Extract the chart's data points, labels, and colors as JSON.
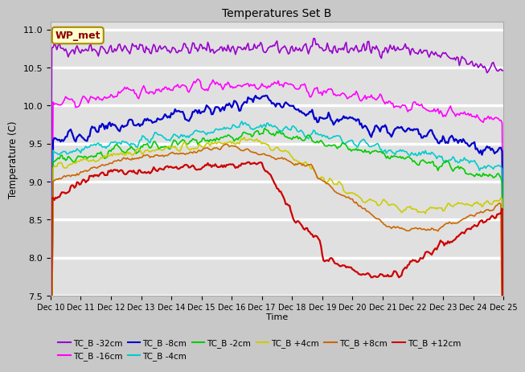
{
  "title": "Temperatures Set B",
  "xlabel": "Time",
  "ylabel": "Temperature (C)",
  "ylim": [
    7.5,
    11.1
  ],
  "xlim": [
    0,
    360
  ],
  "x_tick_labels": [
    "Dec 10",
    "Dec 11",
    "Dec 12",
    "Dec 13",
    "Dec 14",
    "Dec 15",
    "Dec 16",
    "Dec 17",
    "Dec 18",
    "Dec 19",
    "Dec 20",
    "Dec 21",
    "Dec 22",
    "Dec 23",
    "Dec 24",
    "Dec 25"
  ],
  "x_tick_positions": [
    0,
    24,
    48,
    72,
    96,
    120,
    144,
    168,
    192,
    216,
    240,
    264,
    288,
    312,
    336,
    360
  ],
  "annotation_text": "WP_met",
  "annotation_color": "#880000",
  "annotation_bg": "#ffffcc",
  "annotation_edge": "#aa8800",
  "fig_bg": "#c8c8c8",
  "plot_bg": "#e0e0e0",
  "grid_color": "#ffffff",
  "yticks": [
    7.5,
    8.0,
    8.5,
    9.0,
    9.5,
    10.0,
    10.5,
    11.0
  ],
  "series_colors": {
    "TC_B -32cm": "#9900cc",
    "TC_B -16cm": "#ff00ff",
    "TC_B -8cm": "#0000cc",
    "TC_B -4cm": "#00cccc",
    "TC_B -2cm": "#00cc00",
    "TC_B +4cm": "#cccc00",
    "TC_B +8cm": "#cc6600",
    "TC_B +12cm": "#cc0000"
  }
}
